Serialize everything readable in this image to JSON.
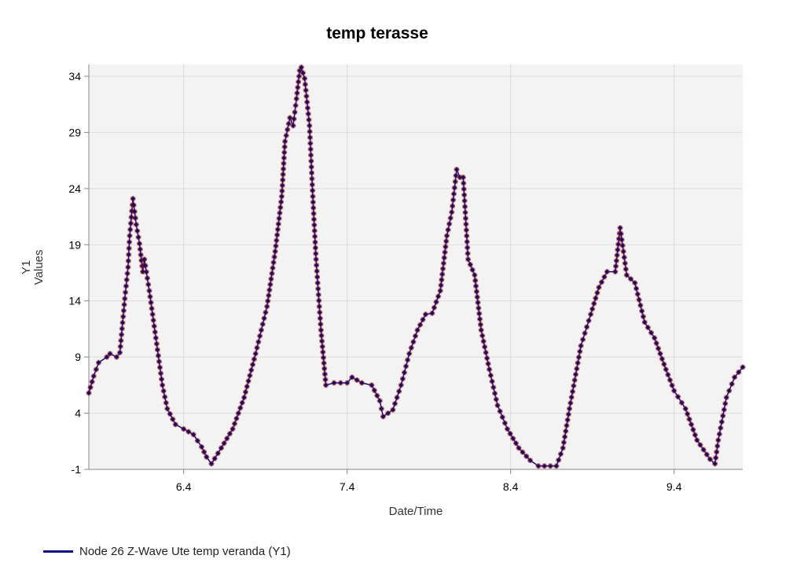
{
  "chart_data": {
    "type": "line",
    "title": "temp terasse",
    "xlabel": "Date/Time",
    "ylabel": [
      "Y1",
      "Values"
    ],
    "xlim": [
      5.82,
      9.82
    ],
    "ylim": [
      -1,
      35.05
    ],
    "xticks": [
      6.4,
      7.4,
      8.4,
      9.4
    ],
    "xtick_labels": [
      "6.4",
      "7.4",
      "8.4",
      "9.4"
    ],
    "yticks": [
      -1,
      4,
      9,
      14,
      19,
      24,
      29,
      34
    ],
    "ytick_labels": [
      "-1",
      "4",
      "9",
      "14",
      "19",
      "24",
      "29",
      "34"
    ],
    "grid": true,
    "legend_position": "bottom-left",
    "series": [
      {
        "name": "Node 26 Z-Wave Ute temp veranda (Y1)",
        "color": "#0a0a8c",
        "marker_color": "#b22222",
        "x": [
          5.82,
          5.85,
          5.88,
          5.93,
          5.95,
          5.99,
          6.01,
          6.04,
          6.06,
          6.07,
          6.09,
          6.11,
          6.13,
          6.15,
          6.16,
          6.19,
          6.23,
          6.27,
          6.3,
          6.35,
          6.4,
          6.46,
          6.51,
          6.54,
          6.57,
          6.63,
          6.7,
          6.77,
          6.84,
          6.91,
          6.96,
          7.0,
          7.02,
          7.05,
          7.07,
          7.09,
          7.11,
          7.12,
          7.14,
          7.17,
          7.19,
          7.21,
          7.24,
          7.27,
          7.32,
          7.4,
          7.43,
          7.49,
          7.55,
          7.6,
          7.62,
          7.68,
          7.73,
          7.78,
          7.83,
          7.88,
          7.92,
          7.97,
          8.01,
          8.04,
          8.07,
          8.09,
          8.11,
          8.14,
          8.18,
          8.22,
          8.27,
          8.32,
          8.38,
          8.45,
          8.52,
          8.57,
          8.68,
          8.72,
          8.76,
          8.83,
          8.89,
          8.94,
          8.99,
          9.04,
          9.07,
          9.11,
          9.16,
          9.22,
          9.28,
          9.35,
          9.4,
          9.47,
          9.54,
          9.62,
          9.65,
          9.67,
          9.72,
          9.77,
          9.82
        ],
        "y": [
          5.8,
          7.3,
          8.5,
          9.0,
          9.3,
          9.0,
          9.4,
          14.2,
          17.0,
          19.8,
          23.1,
          20.8,
          19.1,
          16.6,
          17.7,
          14.9,
          10.7,
          6.5,
          4.4,
          3.0,
          2.6,
          2.1,
          1.0,
          0.1,
          -0.5,
          0.9,
          2.6,
          5.4,
          9.3,
          13.5,
          18.4,
          23.3,
          28.2,
          30.3,
          29.6,
          32.0,
          34.5,
          34.8,
          33.8,
          29.6,
          23.3,
          17.7,
          11.4,
          6.5,
          6.7,
          6.7,
          7.2,
          6.7,
          6.5,
          5.1,
          3.7,
          4.3,
          6.5,
          9.3,
          11.4,
          12.8,
          12.9,
          14.9,
          19.8,
          21.9,
          25.7,
          25.0,
          25.0,
          17.7,
          16.3,
          11.4,
          7.9,
          4.7,
          2.6,
          0.9,
          -0.2,
          -0.7,
          -0.7,
          0.9,
          4.4,
          10.0,
          12.8,
          15.2,
          16.6,
          16.6,
          20.5,
          16.3,
          15.6,
          12.1,
          10.7,
          7.9,
          6.0,
          4.4,
          1.6,
          -0.1,
          -0.5,
          1.6,
          5.4,
          7.2,
          8.1
        ]
      }
    ]
  }
}
